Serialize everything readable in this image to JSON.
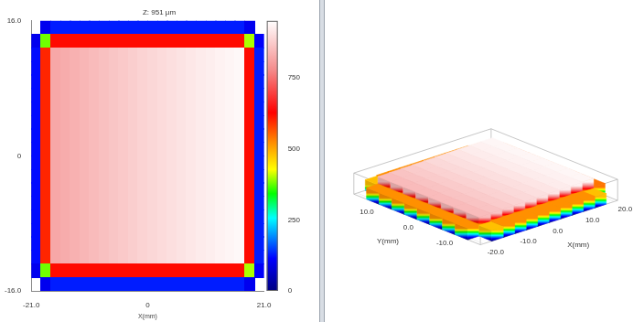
{
  "chart_data": [
    {
      "type": "heatmap",
      "title": "Z: 951 µm",
      "xlabel": "X(mm)",
      "x": [
        -20.125,
        -18.375,
        -16.625,
        -14.875,
        -13.125,
        -11.375,
        -9.625,
        -7.875,
        -6.125,
        -4.375,
        -2.625,
        -0.875,
        0.875,
        2.625,
        4.375,
        6.125,
        7.875,
        9.625,
        11.375,
        13.125,
        14.875,
        16.625,
        18.375,
        20.125
      ],
      "y": [
        15.2,
        13.6,
        12,
        10.4,
        8.8,
        7.2,
        5.6,
        4,
        2.4,
        0.8,
        -0.8,
        -2.4,
        -4,
        -5.6,
        -7.2,
        -8.8,
        -10.4,
        -12,
        -13.6,
        -15.2
      ],
      "cells": [
        [
          null,
          100,
          130,
          130,
          130,
          130,
          130,
          130,
          130,
          130,
          130,
          130,
          130,
          130,
          130,
          130,
          130,
          130,
          130,
          130,
          130,
          130,
          100,
          null
        ],
        [
          100,
          380,
          620,
          620,
          620,
          620,
          620,
          620,
          620,
          620,
          620,
          620,
          620,
          620,
          620,
          620,
          620,
          620,
          620,
          620,
          620,
          620,
          400,
          110
        ],
        [
          120,
          600,
          820,
          828,
          835,
          842,
          850,
          857,
          864,
          871,
          878,
          885,
          892,
          898,
          904,
          910,
          916,
          921,
          926,
          931,
          936,
          940,
          620,
          130
        ],
        [
          120,
          600,
          820,
          828,
          835,
          842,
          850,
          857,
          864,
          871,
          878,
          885,
          892,
          898,
          904,
          910,
          916,
          921,
          926,
          931,
          936,
          940,
          620,
          130
        ],
        [
          120,
          600,
          820,
          828,
          835,
          842,
          850,
          857,
          864,
          871,
          878,
          885,
          892,
          898,
          904,
          910,
          916,
          921,
          926,
          931,
          936,
          940,
          620,
          130
        ],
        [
          120,
          600,
          820,
          828,
          835,
          842,
          850,
          857,
          864,
          871,
          878,
          885,
          892,
          898,
          904,
          910,
          916,
          921,
          926,
          931,
          936,
          940,
          620,
          130
        ],
        [
          120,
          600,
          820,
          828,
          835,
          842,
          850,
          857,
          864,
          871,
          878,
          885,
          892,
          898,
          904,
          910,
          916,
          921,
          926,
          931,
          936,
          940,
          620,
          130
        ],
        [
          120,
          600,
          820,
          828,
          835,
          842,
          850,
          857,
          864,
          871,
          878,
          885,
          892,
          898,
          904,
          910,
          916,
          921,
          926,
          931,
          936,
          940,
          620,
          130
        ],
        [
          120,
          600,
          820,
          828,
          835,
          842,
          850,
          857,
          864,
          871,
          878,
          885,
          892,
          898,
          904,
          910,
          916,
          921,
          926,
          931,
          936,
          940,
          620,
          130
        ],
        [
          120,
          600,
          820,
          828,
          835,
          842,
          850,
          857,
          864,
          871,
          878,
          885,
          892,
          898,
          904,
          910,
          916,
          921,
          926,
          931,
          936,
          940,
          620,
          130
        ],
        [
          120,
          600,
          820,
          828,
          835,
          842,
          850,
          857,
          864,
          871,
          878,
          885,
          892,
          898,
          904,
          910,
          916,
          921,
          926,
          931,
          936,
          940,
          620,
          130
        ],
        [
          120,
          600,
          820,
          828,
          835,
          842,
          850,
          857,
          864,
          871,
          878,
          885,
          892,
          898,
          904,
          910,
          916,
          921,
          926,
          931,
          936,
          940,
          620,
          130
        ],
        [
          120,
          600,
          820,
          828,
          835,
          842,
          850,
          857,
          864,
          871,
          878,
          885,
          892,
          898,
          904,
          910,
          916,
          921,
          926,
          931,
          936,
          940,
          620,
          130
        ],
        [
          120,
          600,
          820,
          828,
          835,
          842,
          850,
          857,
          864,
          871,
          878,
          885,
          892,
          898,
          904,
          910,
          916,
          921,
          926,
          931,
          936,
          940,
          620,
          130
        ],
        [
          120,
          600,
          820,
          828,
          835,
          842,
          850,
          857,
          864,
          871,
          878,
          885,
          892,
          898,
          904,
          910,
          916,
          921,
          926,
          931,
          936,
          940,
          620,
          130
        ],
        [
          120,
          600,
          820,
          828,
          835,
          842,
          850,
          857,
          864,
          871,
          878,
          885,
          892,
          898,
          904,
          910,
          916,
          921,
          926,
          931,
          936,
          940,
          620,
          130
        ],
        [
          120,
          600,
          820,
          828,
          835,
          842,
          850,
          857,
          864,
          871,
          878,
          885,
          892,
          898,
          904,
          910,
          916,
          921,
          926,
          931,
          936,
          940,
          620,
          130
        ],
        [
          120,
          600,
          820,
          828,
          835,
          842,
          850,
          857,
          864,
          871,
          878,
          885,
          892,
          898,
          904,
          910,
          916,
          921,
          926,
          931,
          936,
          940,
          620,
          130
        ],
        [
          100,
          380,
          620,
          620,
          620,
          620,
          620,
          620,
          620,
          620,
          620,
          620,
          620,
          620,
          620,
          620,
          620,
          620,
          620,
          620,
          620,
          620,
          400,
          110
        ],
        [
          null,
          100,
          130,
          130,
          130,
          130,
          130,
          130,
          130,
          130,
          130,
          130,
          130,
          130,
          130,
          130,
          130,
          130,
          130,
          130,
          130,
          130,
          100,
          null
        ]
      ],
      "xlim": [
        -21,
        21
      ],
      "ylim": [
        -16,
        16
      ],
      "xticks": [
        {
          "value": -21,
          "label": "-21.0"
        },
        0,
        {
          "value": 21,
          "label": "21.0"
        }
      ],
      "yticks": [
        {
          "value": -16,
          "label": "-16.0"
        },
        0,
        {
          "value": 16,
          "label": "16.0"
        }
      ],
      "grid": false,
      "colorbar_range": [
        0,
        951
      ],
      "colorbar_ticks": [
        0,
        250,
        500,
        750
      ]
    },
    {
      "type": "surface",
      "xlabel": "X(mm)",
      "ylabel": "Y(mm)",
      "x": [
        -19.25,
        -15.75,
        -12.25,
        -8.75,
        -5.25,
        -1.75,
        1.75,
        5.25,
        8.75,
        12.25,
        15.75,
        19.25
      ],
      "y": [
        14.4,
        11.2,
        8,
        4.8,
        1.6,
        -1.6,
        -4.8,
        -8,
        -11.2,
        -14.4
      ],
      "cells": [
        [
          null,
          480,
          520,
          520,
          520,
          520,
          520,
          520,
          520,
          520,
          480,
          null
        ],
        [
          520,
          850,
          862,
          873,
          884,
          894,
          904,
          913,
          922,
          930,
          938,
          540
        ],
        [
          520,
          850,
          862,
          873,
          884,
          894,
          904,
          913,
          922,
          930,
          938,
          540
        ],
        [
          520,
          850,
          862,
          873,
          884,
          894,
          904,
          913,
          922,
          930,
          938,
          540
        ],
        [
          520,
          850,
          862,
          873,
          884,
          894,
          904,
          913,
          922,
          930,
          938,
          540
        ],
        [
          520,
          850,
          862,
          873,
          884,
          894,
          904,
          913,
          922,
          930,
          938,
          540
        ],
        [
          520,
          850,
          862,
          873,
          884,
          894,
          904,
          913,
          922,
          930,
          938,
          540
        ],
        [
          520,
          850,
          862,
          873,
          884,
          894,
          904,
          913,
          922,
          930,
          938,
          540
        ],
        [
          520,
          850,
          862,
          873,
          884,
          894,
          904,
          913,
          922,
          930,
          938,
          540
        ],
        [
          null,
          480,
          520,
          520,
          520,
          520,
          520,
          520,
          520,
          520,
          480,
          null
        ]
      ],
      "xlim": [
        -21,
        21
      ],
      "ylim": [
        -16,
        16
      ],
      "zlim": [
        0,
        951
      ],
      "xticks": [
        {
          "value": -20,
          "label": "-20.0"
        },
        {
          "value": -10,
          "label": "-10.0"
        },
        {
          "value": 0,
          "label": "0.0"
        },
        {
          "value": 10,
          "label": "10.0"
        },
        {
          "value": 20,
          "label": "20.0"
        }
      ],
      "yticks": [
        {
          "value": -10,
          "label": "-10.0"
        },
        {
          "value": 0,
          "label": "0.0"
        },
        {
          "value": 10,
          "label": "10.0"
        }
      ]
    }
  ]
}
